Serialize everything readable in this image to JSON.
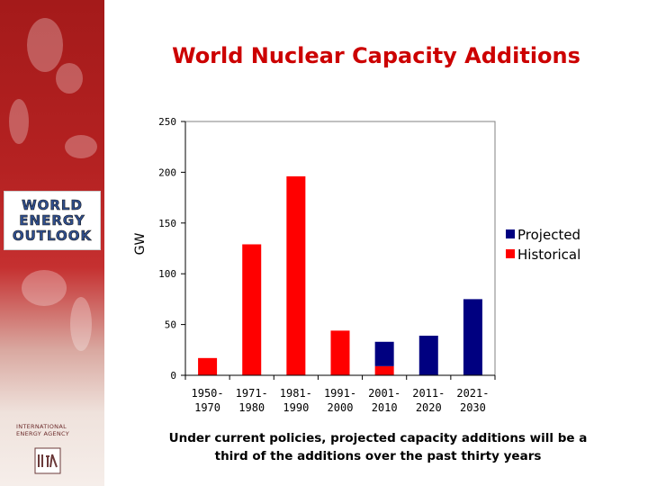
{
  "branding": {
    "logo_lines": [
      "WORLD",
      "ENERGY",
      "OUTLOOK"
    ],
    "org_lines": [
      "INTERNATIONAL",
      "ENERGY AGENCY"
    ]
  },
  "chart_data": {
    "type": "bar",
    "stacked": true,
    "title": "World Nuclear Capacity Additions",
    "ylabel": "GW",
    "xlabel": "",
    "ylim": [
      0,
      250
    ],
    "yticks": [
      0,
      50,
      100,
      150,
      200,
      250
    ],
    "categories": [
      [
        "1950-",
        "1970"
      ],
      [
        "1971-",
        "1980"
      ],
      [
        "1981-",
        "1990"
      ],
      [
        "1991-",
        "2000"
      ],
      [
        "2001-",
        "2010"
      ],
      [
        "2011-",
        "2020"
      ],
      [
        "2021-",
        "2030"
      ]
    ],
    "series": [
      {
        "name": "Historical",
        "color": "#ff0000",
        "values": [
          17,
          129,
          196,
          44,
          9,
          0,
          0
        ]
      },
      {
        "name": "Projected",
        "color": "#000080",
        "values": [
          0,
          0,
          0,
          0,
          24,
          39,
          75
        ]
      }
    ],
    "legend_order": [
      "Projected",
      "Historical"
    ],
    "legend": "right"
  },
  "caption": {
    "line1": "Under current policies, projected capacity additions will be a",
    "line2": "third of the additions over the past thirty years"
  }
}
